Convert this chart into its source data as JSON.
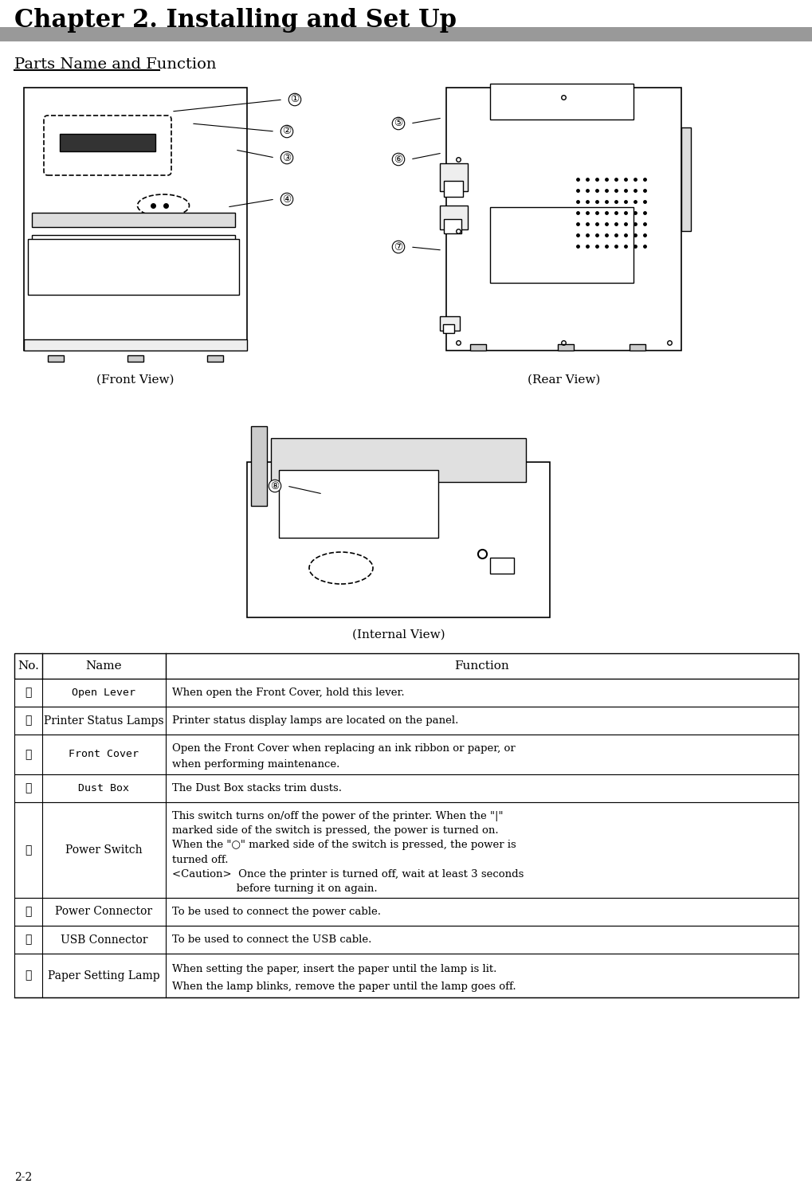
{
  "title": "Chapter 2. Installing and Set Up",
  "section": "Parts Name and Function",
  "page_num": "2-2",
  "bg_color": "#ffffff",
  "title_fontsize": 22,
  "section_fontsize": 14,
  "table_header": [
    "No.",
    "Name",
    "Function"
  ],
  "table_rows": [
    [
      "①",
      "Open Lever",
      "When open the Front Cover, hold this lever."
    ],
    [
      "②",
      "Printer Status Lamps",
      "Printer status display lamps are located on the panel."
    ],
    [
      "③",
      "Front Cover",
      "Open the Front Cover when replacing an ink ribbon or paper, or\nwhen performing maintenance."
    ],
    [
      "④",
      "Dust Box",
      "The Dust Box stacks trim dusts."
    ],
    [
      "⑤",
      "Power Switch",
      "This switch turns on/off the power of the printer. When the \"|\"\nmarked side of the switch is pressed, the power is turned on.\nWhen the \"○\" marked side of the switch is pressed, the power is\nturned off.\n<Caution>  Once the printer is turned off, wait at least 3 seconds\n                   before turning it on again."
    ],
    [
      "⑥",
      "Power Connector",
      "To be used to connect the power cable."
    ],
    [
      "⑦",
      "USB Connector",
      "To be used to connect the USB cable."
    ],
    [
      "⑧",
      "Paper Setting Lamp",
      "When setting the paper, insert the paper until the lamp is lit.\nWhen the lamp blinks, remove the paper until the lamp goes off."
    ]
  ],
  "front_view_label": "(Front View)",
  "rear_view_label": "(Rear View)",
  "internal_view_label": "(Internal View)"
}
